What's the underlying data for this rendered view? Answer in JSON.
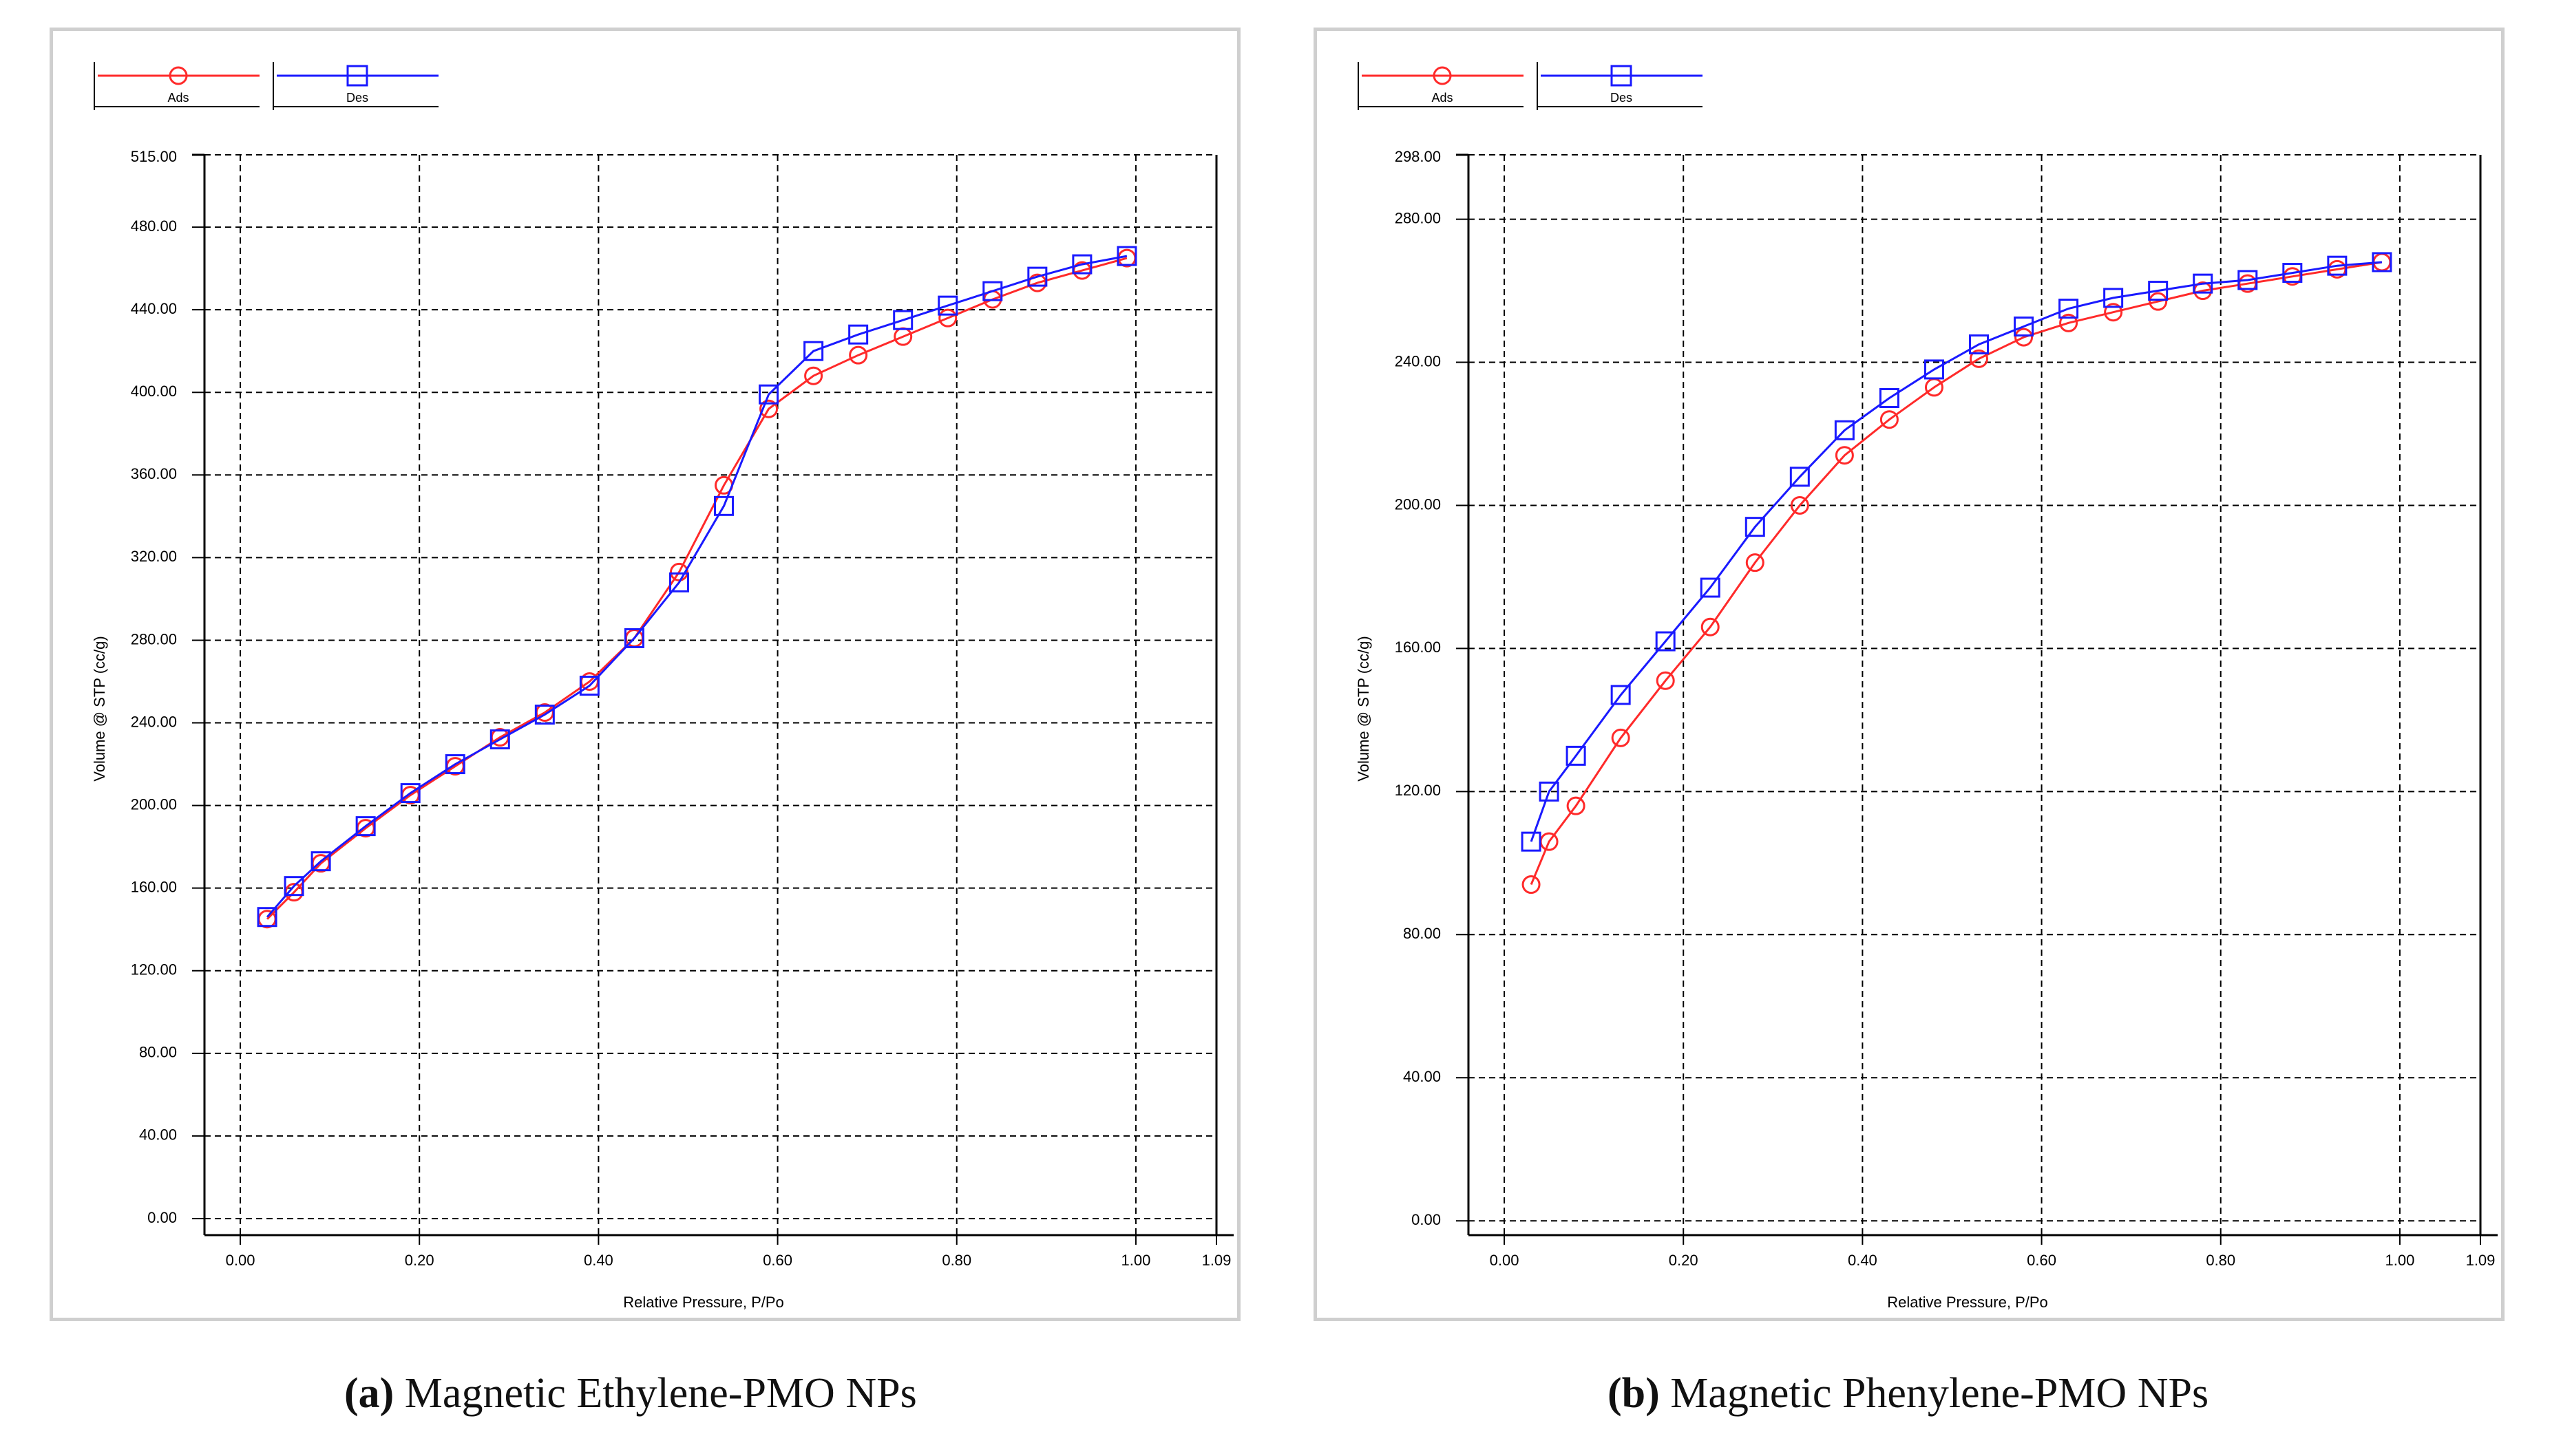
{
  "colors": {
    "adsorption": "#ff2a2a",
    "desorption": "#1a1aff",
    "grid": "#000000",
    "frame": "#cfcfcf"
  },
  "chart_data": [
    {
      "id": "a",
      "type": "line",
      "xlabel": "Relative Pressure, P/Po",
      "ylabel": "Volume @ STP (cc/g)",
      "xlim": [
        -0.04,
        1.09
      ],
      "ylim": [
        -8,
        515
      ],
      "x_ticks": [
        0.0,
        0.2,
        0.4,
        0.6,
        0.8,
        1.0,
        1.09
      ],
      "x_tick_labels": [
        "0.00",
        "0.20",
        "0.40",
        "0.60",
        "0.80",
        "1.00",
        "1.09"
      ],
      "y_ticks": [
        0,
        40,
        80,
        120,
        160,
        200,
        240,
        280,
        320,
        360,
        400,
        440,
        480,
        515
      ],
      "y_tick_labels": [
        "0.00",
        "40.00",
        "80.00",
        "120.00",
        "160.00",
        "200.00",
        "240.00",
        "280.00",
        "320.00",
        "360.00",
        "400.00",
        "440.00",
        "480.00",
        "515.00"
      ],
      "legend": [
        "Ads",
        "Des"
      ],
      "caption_label": "(a)",
      "caption_text": "Magnetic Ethylene-PMO NPs",
      "series": [
        {
          "name": "Ads",
          "marker": "circle",
          "x": [
            0.03,
            0.06,
            0.09,
            0.14,
            0.19,
            0.24,
            0.29,
            0.34,
            0.39,
            0.44,
            0.49,
            0.54,
            0.59,
            0.64,
            0.69,
            0.74,
            0.79,
            0.84,
            0.89,
            0.94,
            0.99
          ],
          "y": [
            145,
            158,
            172,
            189,
            205,
            219,
            233,
            245,
            260,
            281,
            313,
            355,
            392,
            408,
            418,
            427,
            436,
            445,
            453,
            459,
            465
          ]
        },
        {
          "name": "Des",
          "marker": "square",
          "x": [
            0.99,
            0.94,
            0.89,
            0.84,
            0.79,
            0.74,
            0.69,
            0.64,
            0.59,
            0.54,
            0.49,
            0.44,
            0.39,
            0.34,
            0.29,
            0.24,
            0.19,
            0.14,
            0.09,
            0.06,
            0.03
          ],
          "y": [
            466,
            462,
            456,
            449,
            442,
            435,
            428,
            420,
            399,
            345,
            308,
            281,
            258,
            244,
            232,
            220,
            206,
            190,
            173,
            161,
            146
          ]
        }
      ]
    },
    {
      "id": "b",
      "type": "line",
      "xlabel": "Relative Pressure, P/Po",
      "ylabel": "Volume @ STP (cc/g)",
      "xlim": [
        -0.04,
        1.09
      ],
      "ylim": [
        -4,
        298
      ],
      "x_ticks": [
        0.0,
        0.2,
        0.4,
        0.6,
        0.8,
        1.0,
        1.09
      ],
      "x_tick_labels": [
        "0.00",
        "0.20",
        "0.40",
        "0.60",
        "0.80",
        "1.00",
        "1.09"
      ],
      "y_ticks": [
        0,
        40,
        80,
        120,
        160,
        200,
        240,
        280,
        298
      ],
      "y_tick_labels": [
        "0.00",
        "40.00",
        "80.00",
        "120.00",
        "160.00",
        "200.00",
        "240.00",
        "280.00",
        "298.00"
      ],
      "legend": [
        "Ads",
        "Des"
      ],
      "caption_label": "(b)",
      "caption_text": "Magnetic Phenylene-PMO NPs",
      "series": [
        {
          "name": "Ads",
          "marker": "circle",
          "x": [
            0.03,
            0.05,
            0.08,
            0.13,
            0.18,
            0.23,
            0.28,
            0.33,
            0.38,
            0.43,
            0.48,
            0.53,
            0.58,
            0.63,
            0.68,
            0.73,
            0.78,
            0.83,
            0.88,
            0.93,
            0.98
          ],
          "y": [
            94,
            106,
            116,
            135,
            151,
            166,
            184,
            200,
            214,
            224,
            233,
            241,
            247,
            251,
            254,
            257,
            260,
            262,
            264,
            266,
            268
          ]
        },
        {
          "name": "Des",
          "marker": "square",
          "x": [
            0.98,
            0.93,
            0.88,
            0.83,
            0.78,
            0.73,
            0.68,
            0.63,
            0.58,
            0.53,
            0.48,
            0.43,
            0.38,
            0.33,
            0.28,
            0.23,
            0.18,
            0.13,
            0.08,
            0.05,
            0.03
          ],
          "y": [
            268,
            267,
            265,
            263,
            262,
            260,
            258,
            255,
            250,
            245,
            238,
            230,
            221,
            208,
            194,
            177,
            162,
            147,
            130,
            120,
            106
          ]
        }
      ]
    }
  ]
}
